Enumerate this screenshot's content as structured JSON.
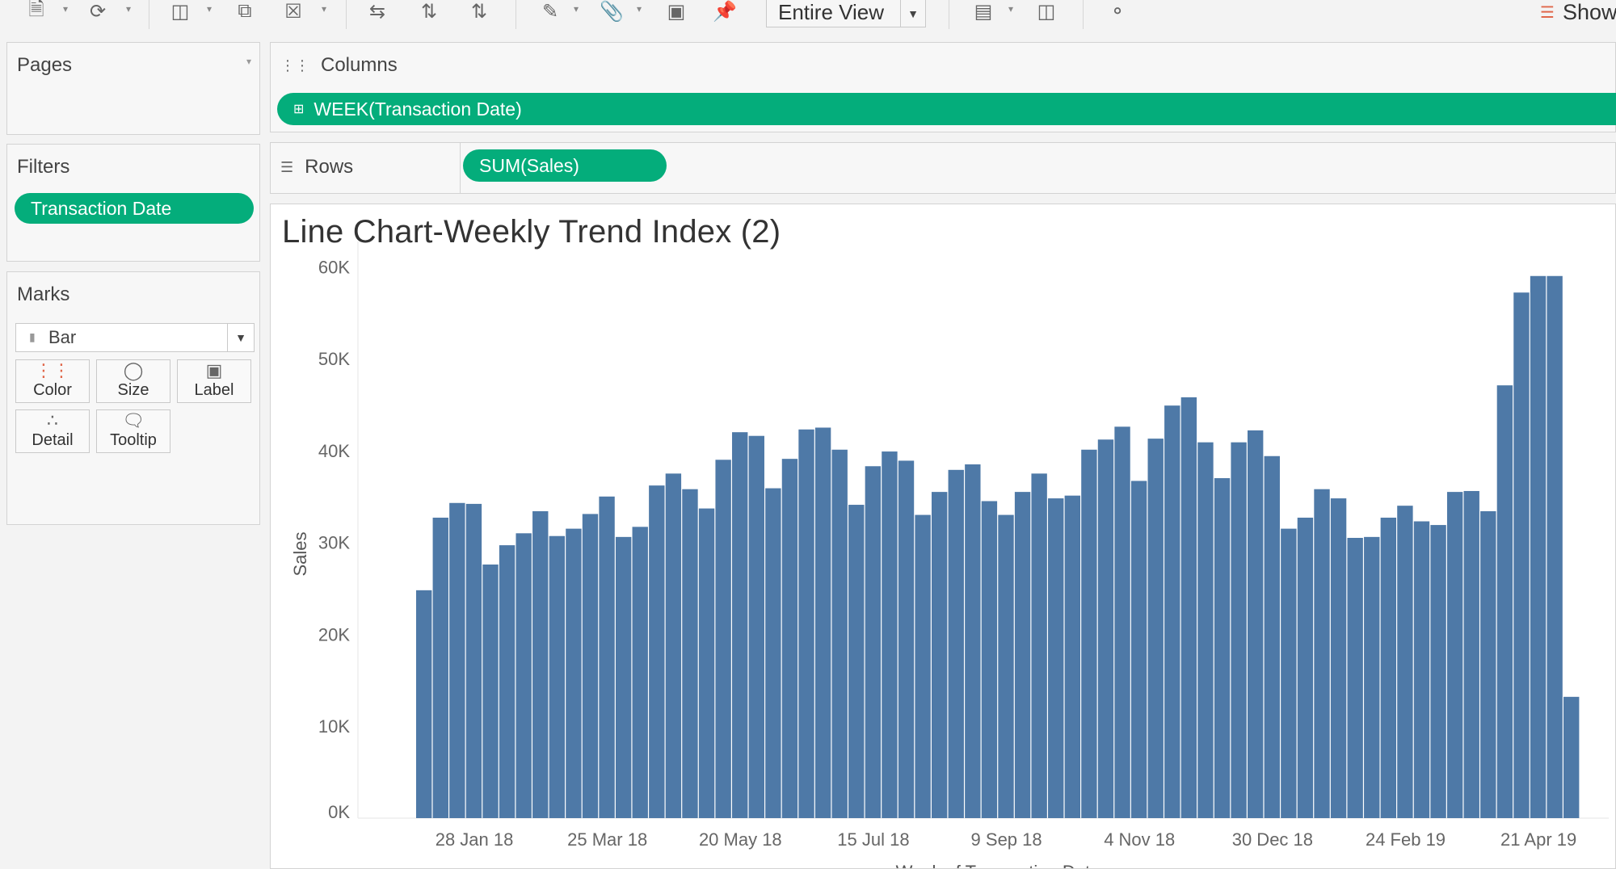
{
  "toolbar": {
    "fit_label": "Entire View",
    "show_me_label": "Show"
  },
  "pages": {
    "title": "Pages"
  },
  "filters": {
    "title": "Filters",
    "pill": "Transaction Date"
  },
  "marks": {
    "title": "Marks",
    "mark_type": "Bar",
    "buttons": [
      "Color",
      "Size",
      "Label",
      "Detail",
      "Tooltip"
    ]
  },
  "columns": {
    "label": "Columns",
    "pill": "WEEK(Transaction Date)"
  },
  "rows": {
    "label": "Rows",
    "pill": "SUM(Sales)"
  },
  "colors": {
    "pill_green": "#04ad7b",
    "bar_blue": "#4e79a7"
  },
  "chart_data": {
    "type": "bar",
    "title": "Line Chart-Weekly Trend Index (2)",
    "xlabel": "Week of Transaction Date",
    "ylabel": "Sales",
    "ylim": [
      0,
      61000
    ],
    "y_ticks": [
      "0K",
      "10K",
      "20K",
      "30K",
      "40K",
      "50K",
      "60K"
    ],
    "x_tick_labels": [
      "28 Jan 18",
      "25 Mar 18",
      "20 May 18",
      "15 Jul 18",
      "9 Sep 18",
      "4 Nov 18",
      "30 Dec 18",
      "24 Feb 19",
      "21 Apr 19"
    ],
    "grid": false,
    "series": [
      {
        "values": [
          24800,
          32700,
          34300,
          34200,
          27600,
          29700,
          31000,
          33400,
          30700,
          31500,
          33100,
          35000,
          30600,
          31700,
          36200,
          37500,
          35800,
          33700,
          39000,
          42000,
          41600,
          35900,
          39100,
          42300,
          42500,
          40100,
          34100,
          38300,
          39900,
          38900,
          33000,
          35500,
          37900,
          38500,
          34500,
          33000,
          35500,
          37500,
          34800,
          35100,
          40100,
          41200,
          42600,
          36700,
          41300,
          44900,
          45800,
          40900,
          37000,
          40900,
          42200,
          39400,
          31500,
          32700,
          35800,
          34800,
          30500,
          30600,
          32700,
          34000,
          32300,
          31900,
          35500,
          35600,
          33400,
          47100,
          57200,
          59000,
          59000,
          13200
        ]
      }
    ]
  }
}
